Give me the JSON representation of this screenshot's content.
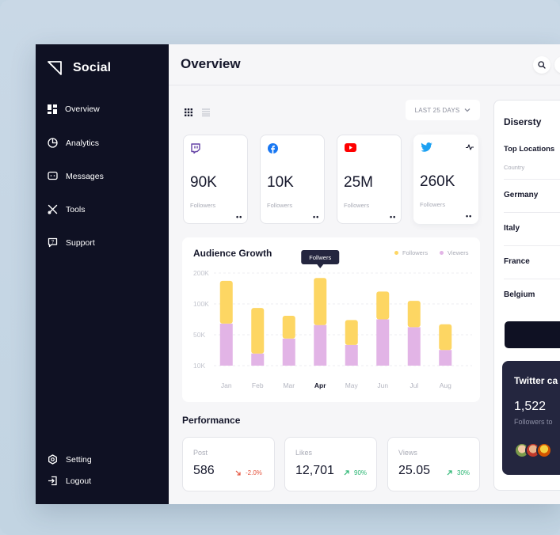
{
  "sidebar": {
    "brand": "Social",
    "items": [
      {
        "label": "Overview",
        "icon": "dashboard-icon"
      },
      {
        "label": "Analytics",
        "icon": "pie-chart-icon"
      },
      {
        "label": "Messages",
        "icon": "message-icon"
      },
      {
        "label": "Tools",
        "icon": "tools-icon"
      },
      {
        "label": "Support",
        "icon": "support-icon"
      }
    ],
    "bottom_items": [
      {
        "label": "Setting",
        "icon": "gear-icon"
      },
      {
        "label": "Logout",
        "icon": "logout-icon"
      }
    ]
  },
  "header": {
    "title": "Overview"
  },
  "toolbar": {
    "date_range": "LAST 25 DAYS"
  },
  "stats": [
    {
      "network": "twitch",
      "icon": "twitch-icon",
      "color": "#6441a5",
      "value": "90K",
      "label": "Followers",
      "more": "••"
    },
    {
      "network": "facebook",
      "icon": "facebook-icon",
      "color": "#1877f2",
      "value": "10K",
      "label": "Followers",
      "more": "••"
    },
    {
      "network": "youtube",
      "icon": "youtube-icon",
      "color": "#ff0000",
      "value": "25M",
      "label": "Followers",
      "more": "••"
    },
    {
      "network": "twitter",
      "icon": "twitter-icon",
      "color": "#1da1f2",
      "value": "260K",
      "label": "Followers",
      "more": "••"
    }
  ],
  "audience_growth": {
    "title": "Audience Growth",
    "tooltip": "Follwers",
    "legend": [
      {
        "label": "Followers",
        "color": "#fdd663"
      },
      {
        "label": "Viewers",
        "color": "#e2b4e6"
      }
    ]
  },
  "chart_data": {
    "type": "bar",
    "stacked": true,
    "title": "Audience Growth",
    "categories": [
      "Jan",
      "Feb",
      "Mar",
      "Apr",
      "May",
      "Jun",
      "Jul",
      "Aug"
    ],
    "y_tick_labels": [
      "200K",
      "100K",
      "50K",
      "10K"
    ],
    "active_category": "Apr",
    "series": [
      {
        "name": "Viewers",
        "color": "#e2b4e6",
        "values": [
          59,
          17,
          38,
          57,
          29,
          65,
          54,
          22
        ]
      },
      {
        "name": "Followers",
        "color": "#fdd663",
        "values": [
          60,
          64,
          32,
          66,
          35,
          39,
          37,
          36
        ]
      }
    ],
    "grid": true,
    "legend_position": "top-right"
  },
  "performance": {
    "title": "Performance",
    "items": [
      {
        "label": "Post",
        "value": "586",
        "delta": "-2.0%",
        "trend": "down",
        "color": "#e5533d"
      },
      {
        "label": "Likes",
        "value": "12,701",
        "delta": "90%",
        "trend": "up",
        "color": "#2bb673"
      },
      {
        "label": "Views",
        "value": "25.05",
        "delta": "30%",
        "trend": "up",
        "color": "#2bb673"
      }
    ]
  },
  "right_panel": {
    "title": "Disersty",
    "subtitle": "Top Locations",
    "column_hint": "Country",
    "countries": [
      "Germany",
      "Italy",
      "France",
      "Belgium"
    ]
  },
  "twitter_card": {
    "title": "Twitter ca",
    "value": "1,522",
    "subtitle": "Followers to"
  }
}
